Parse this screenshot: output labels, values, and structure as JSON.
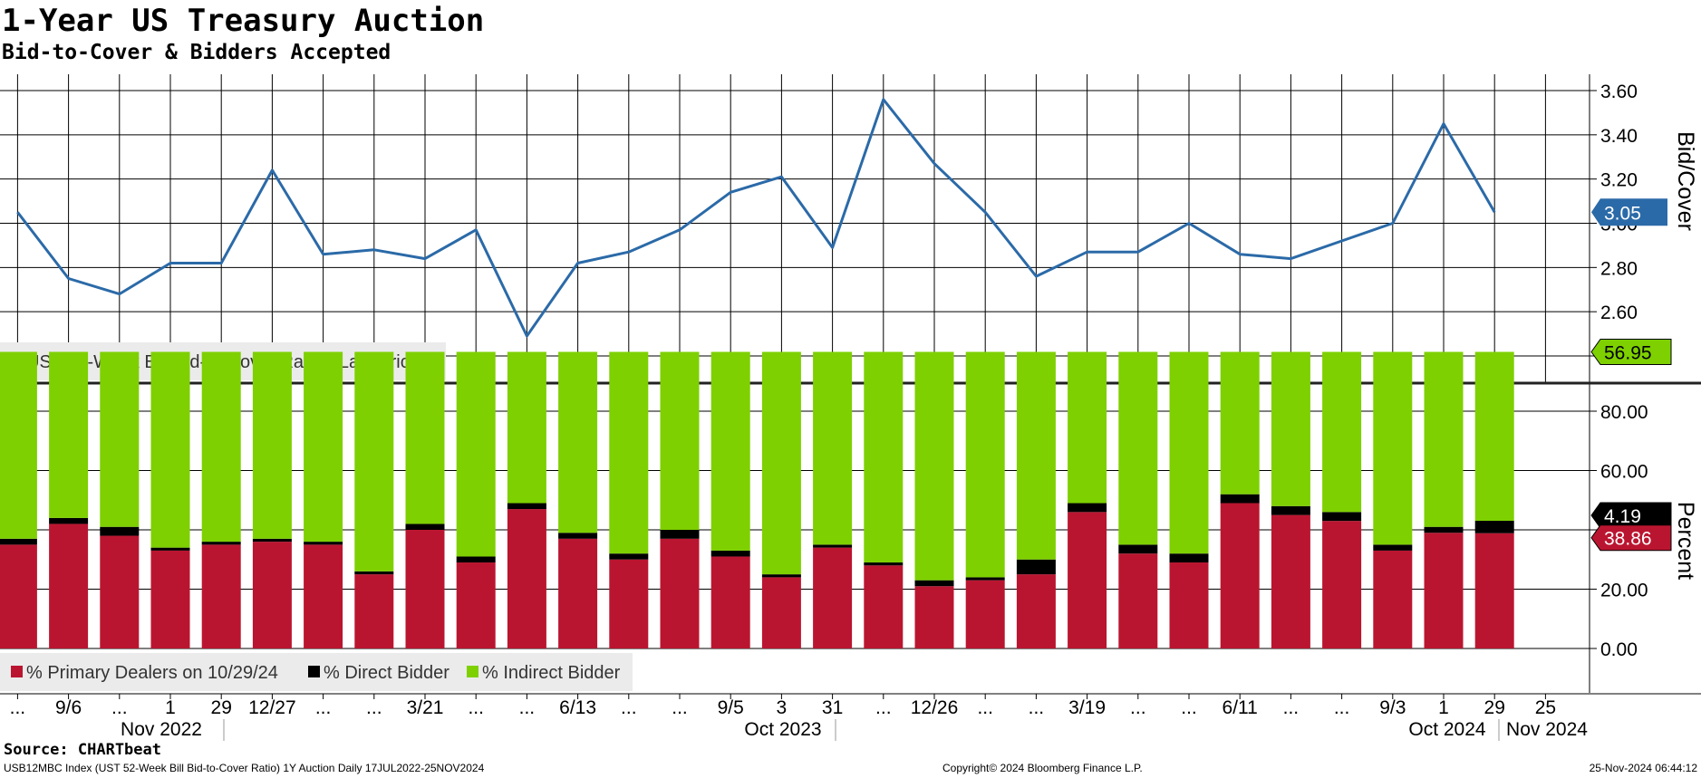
{
  "title": "1-Year US Treasury Auction",
  "subtitle": "Bid-to-Cover & Bidders Accepted",
  "source": "Source: CHARTbeat",
  "footer": {
    "left": "USB12MBC Index (UST 52-Week Bill Bid-to-Cover Ratio) 1Y Auction  Daily 17JUL2022-25NOV2024",
    "center": "Copyright© 2024 Bloomberg Finance L.P.",
    "right": "25-Nov-2024 06:44:12"
  },
  "colors": {
    "line": "#2b6aa8",
    "primary_dealers": "#ba1530",
    "direct_bidder": "#000000",
    "indirect_bidder": "#7ed000",
    "grid": "#000000",
    "legend_bg": "#ebebeb"
  },
  "x_axis": {
    "ticks": [
      "...",
      "9/6",
      "...",
      "1",
      "29",
      "12/27",
      "...",
      "...",
      "3/21",
      "...",
      "...",
      "6/13",
      "...",
      "...",
      "9/5",
      "3",
      "31",
      "...",
      "12/26",
      "...",
      "...",
      "3/19",
      "...",
      "...",
      "6/11",
      "...",
      "...",
      "9/3",
      "1",
      "29",
      "25"
    ],
    "groups": [
      "Nov 2022",
      "Oct 2023",
      "Oct 2024",
      "Nov 2024"
    ]
  },
  "chart_data": [
    {
      "type": "line",
      "ylabel": "Bid/Cover",
      "ylim": [
        2.24,
        3.72
      ],
      "yticks": [
        "2.40",
        "2.60",
        "2.80",
        "3.00",
        "3.20",
        "3.40",
        "3.60"
      ],
      "grid": true,
      "legend_position": "bottom-left",
      "last_value_label": "3.05",
      "series": [
        {
          "name": "UST 52-Week Bill Bid-to-Cover Ratio - Last Price",
          "values": [
            3.05,
            2.75,
            2.68,
            2.82,
            2.82,
            3.24,
            2.86,
            2.88,
            2.84,
            2.97,
            2.49,
            2.82,
            2.87,
            2.97,
            3.14,
            3.21,
            2.89,
            3.56,
            3.27,
            3.05,
            2.76,
            2.87,
            2.87,
            3.0,
            2.86,
            2.84,
            2.92,
            3.0,
            3.45,
            3.05
          ]
        }
      ]
    },
    {
      "type": "bar",
      "stacked": true,
      "ylabel": "Percent",
      "ylim": [
        -12,
        100
      ],
      "yticks": [
        "0.00",
        "20.00",
        "40.00",
        "60.00",
        "80.00"
      ],
      "grid": true,
      "legend_position": "bottom-left",
      "last_value_labels": {
        "indirect": "56.95",
        "direct": "4.19",
        "primary": "38.86"
      },
      "series": [
        {
          "name": "% Primary Dealers on 10/29/24",
          "values": [
            35,
            42,
            38,
            33,
            35,
            36,
            35,
            25,
            40,
            29,
            47,
            37,
            30,
            37,
            31,
            24,
            34,
            28,
            21,
            23,
            25,
            46,
            32,
            29,
            49,
            45,
            43,
            33,
            39,
            38.86
          ]
        },
        {
          "name": "% Direct Bidder",
          "values": [
            2,
            2,
            3,
            1,
            1,
            1,
            1,
            1,
            2,
            2,
            2,
            2,
            2,
            3,
            2,
            1,
            1,
            1,
            2,
            1,
            5,
            3,
            3,
            3,
            3,
            3,
            3,
            2,
            2,
            4.19
          ]
        },
        {
          "name": "% Indirect Bidder",
          "values": [
            63,
            56,
            59,
            66,
            64,
            63,
            64,
            74,
            58,
            69,
            51,
            61,
            68,
            60,
            67,
            75,
            65,
            71,
            77,
            76,
            70,
            51,
            65,
            68,
            48,
            52,
            54,
            65,
            59,
            56.95
          ]
        }
      ]
    }
  ]
}
